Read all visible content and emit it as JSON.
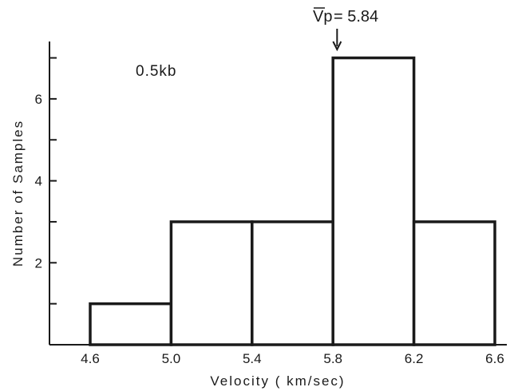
{
  "chart_data": {
    "type": "bar",
    "subtype": "histogram",
    "bins": [
      {
        "from": 4.6,
        "to": 5.0,
        "count": 1
      },
      {
        "from": 5.0,
        "to": 5.4,
        "count": 3
      },
      {
        "from": 5.4,
        "to": 5.8,
        "count": 3
      },
      {
        "from": 5.8,
        "to": 6.2,
        "count": 7
      },
      {
        "from": 6.2,
        "to": 6.6,
        "count": 3
      }
    ],
    "xticks": [
      "4.6",
      "5.0",
      "5.4",
      "5.8",
      "6.2",
      "6.6"
    ],
    "yticks": [
      "2",
      "4",
      "6"
    ],
    "xlabel": "Velocity  ( km/sec)",
    "ylabel": "Number of Samples",
    "xlim": [
      4.6,
      6.6
    ],
    "ylim": [
      0,
      7.4
    ],
    "condition_label": "0.5kb",
    "mean_annotation": {
      "symbol": "Vp",
      "text": "= 5.84",
      "value": 5.84
    },
    "grid": false,
    "legend": "none"
  }
}
